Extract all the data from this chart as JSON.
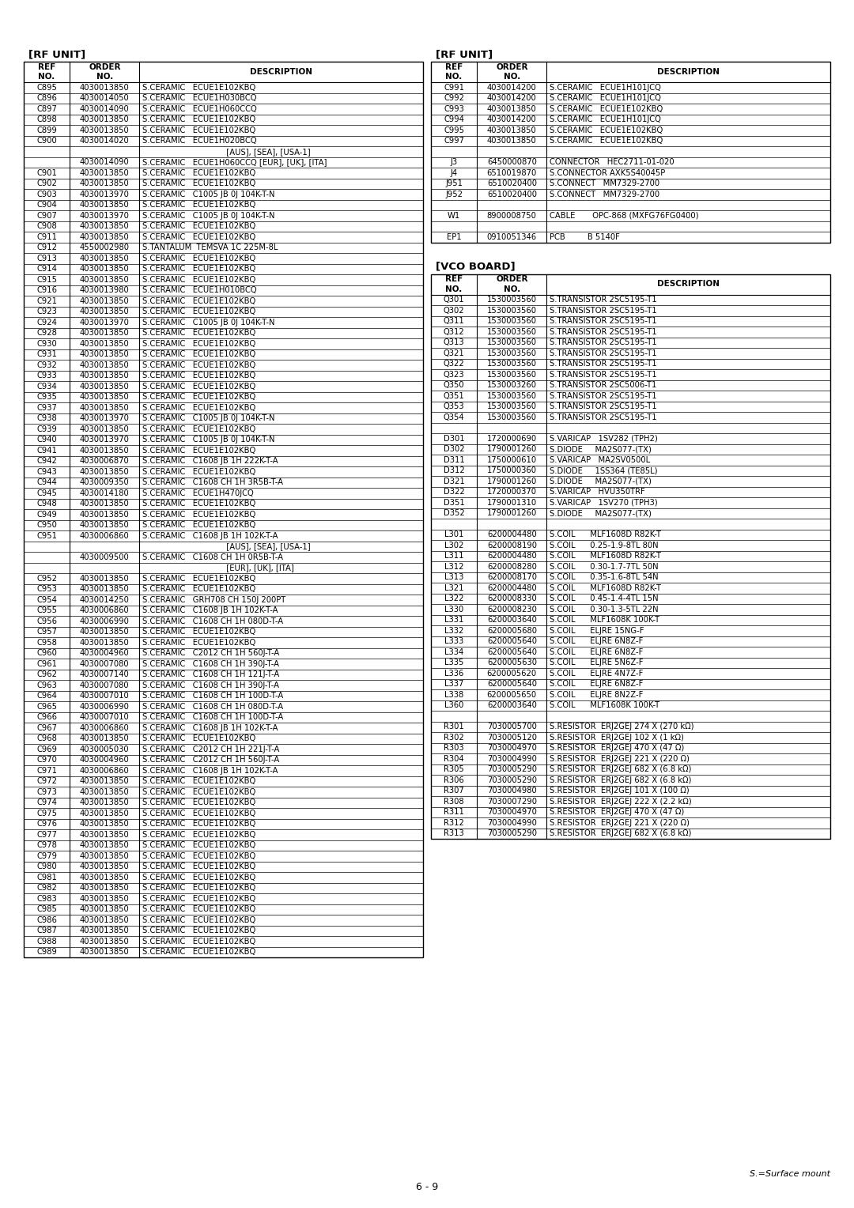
{
  "page_label": "6 - 9",
  "surface_mount_note": "S.=Surface mount",
  "left_table_title": "[RF UNIT]",
  "left_table_headers": [
    "REF\nNO.",
    "ORDER\nNO.",
    "DESCRIPTION"
  ],
  "left_rows": [
    [
      "C895",
      "4030013850",
      "S.CERAMIC   ECUE1E102KBQ"
    ],
    [
      "C896",
      "4030014050",
      "S.CERAMIC   ECUE1H030BCQ"
    ],
    [
      "C897",
      "4030014090",
      "S.CERAMIC   ECUE1H060CCQ"
    ],
    [
      "C898",
      "4030013850",
      "S.CERAMIC   ECUE1E102KBQ"
    ],
    [
      "C899",
      "4030013850",
      "S.CERAMIC   ECUE1E102KBQ"
    ],
    [
      "C900",
      "4030014020",
      "S.CERAMIC   ECUE1H020BCQ"
    ],
    [
      "",
      "",
      "                                  [AUS], [SEA], [USA-1]"
    ],
    [
      "",
      "4030014090",
      "S.CERAMIC   ECUE1H060CCQ [EUR], [UK], [ITA]"
    ],
    [
      "C901",
      "4030013850",
      "S.CERAMIC   ECUE1E102KBQ"
    ],
    [
      "C902",
      "4030013850",
      "S.CERAMIC   ECUE1E102KBQ"
    ],
    [
      "C903",
      "4030013970",
      "S.CERAMIC   C1005 JB 0J 104K-T-N"
    ],
    [
      "C904",
      "4030013850",
      "S.CERAMIC   ECUE1E102KBQ"
    ],
    [
      "C907",
      "4030013970",
      "S.CERAMIC   C1005 JB 0J 104K-T-N"
    ],
    [
      "C908",
      "4030013850",
      "S.CERAMIC   ECUE1E102KBQ"
    ],
    [
      "C911",
      "4030013850",
      "S.CERAMIC   ECUE1E102KBQ"
    ],
    [
      "C912",
      "4550002980",
      "S.TANTALUM  TEMSVA 1C 225M-8L"
    ],
    [
      "C913",
      "4030013850",
      "S.CERAMIC   ECUE1E102KBQ"
    ],
    [
      "C914",
      "4030013850",
      "S.CERAMIC   ECUE1E102KBQ"
    ],
    [
      "C915",
      "4030013850",
      "S.CERAMIC   ECUE1E102KBQ"
    ],
    [
      "C916",
      "4030013980",
      "S.CERAMIC   ECUE1H010BCQ"
    ],
    [
      "C921",
      "4030013850",
      "S.CERAMIC   ECUE1E102KBQ"
    ],
    [
      "C923",
      "4030013850",
      "S.CERAMIC   ECUE1E102KBQ"
    ],
    [
      "C924",
      "4030013970",
      "S.CERAMIC   C1005 JB 0J 104K-T-N"
    ],
    [
      "C928",
      "4030013850",
      "S.CERAMIC   ECUE1E102KBQ"
    ],
    [
      "C930",
      "4030013850",
      "S.CERAMIC   ECUE1E102KBQ"
    ],
    [
      "C931",
      "4030013850",
      "S.CERAMIC   ECUE1E102KBQ"
    ],
    [
      "C932",
      "4030013850",
      "S.CERAMIC   ECUE1E102KBQ"
    ],
    [
      "C933",
      "4030013850",
      "S.CERAMIC   ECUE1E102KBQ"
    ],
    [
      "C934",
      "4030013850",
      "S.CERAMIC   ECUE1E102KBQ"
    ],
    [
      "C935",
      "4030013850",
      "S.CERAMIC   ECUE1E102KBQ"
    ],
    [
      "C937",
      "4030013850",
      "S.CERAMIC   ECUE1E102KBQ"
    ],
    [
      "C938",
      "4030013970",
      "S.CERAMIC   C1005 JB 0J 104K-T-N"
    ],
    [
      "C939",
      "4030013850",
      "S.CERAMIC   ECUE1E102KBQ"
    ],
    [
      "C940",
      "4030013970",
      "S.CERAMIC   C1005 JB 0J 104K-T-N"
    ],
    [
      "C941",
      "4030013850",
      "S.CERAMIC   ECUE1E102KBQ"
    ],
    [
      "C942",
      "4030006870",
      "S.CERAMIC   C1608 JB 1H 222K-T-A"
    ],
    [
      "C943",
      "4030013850",
      "S.CERAMIC   ECUE1E102KBQ"
    ],
    [
      "C944",
      "4030009350",
      "S.CERAMIC   C1608 CH 1H 3R5B-T-A"
    ],
    [
      "C945",
      "4030014180",
      "S.CERAMIC   ECUE1H470JCQ"
    ],
    [
      "C948",
      "4030013850",
      "S.CERAMIC   ECUE1E102KBQ"
    ],
    [
      "C949",
      "4030013850",
      "S.CERAMIC   ECUE1E102KBQ"
    ],
    [
      "C950",
      "4030013850",
      "S.CERAMIC   ECUE1E102KBQ"
    ],
    [
      "C951",
      "4030006860",
      "S.CERAMIC   C1608 JB 1H 102K-T-A"
    ],
    [
      "",
      "",
      "                                  [AUS], [SEA], [USA-1]"
    ],
    [
      "",
      "4030009500",
      "S.CERAMIC   C1608 CH 1H 0R5B-T-A"
    ],
    [
      "",
      "",
      "                                  [EUR], [UK], [ITA]"
    ],
    [
      "C952",
      "4030013850",
      "S.CERAMIC   ECUE1E102KBQ"
    ],
    [
      "C953",
      "4030013850",
      "S.CERAMIC   ECUE1E102KBQ"
    ],
    [
      "C954",
      "4030014250",
      "S.CERAMIC   GRH708 CH 150J 200PT"
    ],
    [
      "C955",
      "4030006860",
      "S.CERAMIC   C1608 JB 1H 102K-T-A"
    ],
    [
      "C956",
      "4030006990",
      "S.CERAMIC   C1608 CH 1H 080D-T-A"
    ],
    [
      "C957",
      "4030013850",
      "S.CERAMIC   ECUE1E102KBQ"
    ],
    [
      "C958",
      "4030013850",
      "S.CERAMIC   ECUE1E102KBQ"
    ],
    [
      "C960",
      "4030004960",
      "S.CERAMIC   C2012 CH 1H 560J-T-A"
    ],
    [
      "C961",
      "4030007080",
      "S.CERAMIC   C1608 CH 1H 390J-T-A"
    ],
    [
      "C962",
      "4030007140",
      "S.CERAMIC   C1608 CH 1H 121J-T-A"
    ],
    [
      "C963",
      "4030007080",
      "S.CERAMIC   C1608 CH 1H 390J-T-A"
    ],
    [
      "C964",
      "4030007010",
      "S.CERAMIC   C1608 CH 1H 100D-T-A"
    ],
    [
      "C965",
      "4030006990",
      "S.CERAMIC   C1608 CH 1H 080D-T-A"
    ],
    [
      "C966",
      "4030007010",
      "S.CERAMIC   C1608 CH 1H 100D-T-A"
    ],
    [
      "C967",
      "4030006860",
      "S.CERAMIC   C1608 JB 1H 102K-T-A"
    ],
    [
      "C968",
      "4030013850",
      "S.CERAMIC   ECUE1E102KBQ"
    ],
    [
      "C969",
      "4030005030",
      "S.CERAMIC   C2012 CH 1H 221J-T-A"
    ],
    [
      "C970",
      "4030004960",
      "S.CERAMIC   C2012 CH 1H 560J-T-A"
    ],
    [
      "C971",
      "4030006860",
      "S.CERAMIC   C1608 JB 1H 102K-T-A"
    ],
    [
      "C972",
      "4030013850",
      "S.CERAMIC   ECUE1E102KBQ"
    ],
    [
      "C973",
      "4030013850",
      "S.CERAMIC   ECUE1E102KBQ"
    ],
    [
      "C974",
      "4030013850",
      "S.CERAMIC   ECUE1E102KBQ"
    ],
    [
      "C975",
      "4030013850",
      "S.CERAMIC   ECUE1E102KBQ"
    ],
    [
      "C976",
      "4030013850",
      "S.CERAMIC   ECUE1E102KBQ"
    ],
    [
      "C977",
      "4030013850",
      "S.CERAMIC   ECUE1E102KBQ"
    ],
    [
      "C978",
      "4030013850",
      "S.CERAMIC   ECUE1E102KBQ"
    ],
    [
      "C979",
      "4030013850",
      "S.CERAMIC   ECUE1E102KBQ"
    ],
    [
      "C980",
      "4030013850",
      "S.CERAMIC   ECUE1E102KBQ"
    ],
    [
      "C981",
      "4030013850",
      "S.CERAMIC   ECUE1E102KBQ"
    ],
    [
      "C982",
      "4030013850",
      "S.CERAMIC   ECUE1E102KBQ"
    ],
    [
      "C983",
      "4030013850",
      "S.CERAMIC   ECUE1E102KBQ"
    ],
    [
      "C985",
      "4030013850",
      "S.CERAMIC   ECUE1E102KBQ"
    ],
    [
      "C986",
      "4030013850",
      "S.CERAMIC   ECUE1E102KBQ"
    ],
    [
      "C987",
      "4030013850",
      "S.CERAMIC   ECUE1E102KBQ"
    ],
    [
      "C988",
      "4030013850",
      "S.CERAMIC   ECUE1E102KBQ"
    ],
    [
      "C989",
      "4030013850",
      "S.CERAMIC   ECUE1E102KBQ"
    ]
  ],
  "right_top_title": "[RF UNIT]",
  "right_top_headers": [
    "REF\nNO.",
    "ORDER\nNO.",
    "DESCRIPTION"
  ],
  "right_top_rows": [
    [
      "C991",
      "4030014200",
      "S.CERAMIC   ECUE1H101JCQ"
    ],
    [
      "C992",
      "4030014200",
      "S.CERAMIC   ECUE1H101JCQ"
    ],
    [
      "C993",
      "4030013850",
      "S.CERAMIC   ECUE1E102KBQ"
    ],
    [
      "C994",
      "4030014200",
      "S.CERAMIC   ECUE1H101JCQ"
    ],
    [
      "C995",
      "4030013850",
      "S.CERAMIC   ECUE1E102KBQ"
    ],
    [
      "C997",
      "4030013850",
      "S.CERAMIC   ECUE1E102KBQ"
    ],
    [
      "",
      "",
      ""
    ],
    [
      "J3",
      "6450000870",
      "CONNECTOR   HEC2711-01-020"
    ],
    [
      "J4",
      "6510019870",
      "S.CONNECTOR AXK5S40045P"
    ],
    [
      "J951",
      "6510020400",
      "S.CONNECT   MM7329-2700"
    ],
    [
      "J952",
      "6510020400",
      "S.CONNECT   MM7329-2700"
    ],
    [
      "",
      "",
      ""
    ],
    [
      "W1",
      "8900008750",
      "CABLE       OPC-868 (MXFG76FG0400)"
    ],
    [
      "",
      "",
      ""
    ],
    [
      "EP1",
      "0910051346",
      "PCB         B 5140F"
    ]
  ],
  "right_bottom_title": "[VCO BOARD]",
  "right_bottom_headers": [
    "REF\nNO.",
    "ORDER\nNO.",
    "DESCRIPTION"
  ],
  "right_bottom_rows": [
    [
      "Q301",
      "1530003560",
      "S.TRANSISTOR 2SC5195-T1"
    ],
    [
      "Q302",
      "1530003560",
      "S.TRANSISTOR 2SC5195-T1"
    ],
    [
      "Q311",
      "1530003560",
      "S.TRANSISTOR 2SC5195-T1"
    ],
    [
      "Q312",
      "1530003560",
      "S.TRANSISTOR 2SC5195-T1"
    ],
    [
      "Q313",
      "1530003560",
      "S.TRANSISTOR 2SC5195-T1"
    ],
    [
      "Q321",
      "1530003560",
      "S.TRANSISTOR 2SC5195-T1"
    ],
    [
      "Q322",
      "1530003560",
      "S.TRANSISTOR 2SC5195-T1"
    ],
    [
      "Q323",
      "1530003560",
      "S.TRANSISTOR 2SC5195-T1"
    ],
    [
      "Q350",
      "1530003260",
      "S.TRANSISTOR 2SC5006-T1"
    ],
    [
      "Q351",
      "1530003560",
      "S.TRANSISTOR 2SC5195-T1"
    ],
    [
      "Q353",
      "1530003560",
      "S.TRANSISTOR 2SC5195-T1"
    ],
    [
      "Q354",
      "1530003560",
      "S.TRANSISTOR 2SC5195-T1"
    ],
    [
      "",
      "",
      ""
    ],
    [
      "D301",
      "1720000690",
      "S.VARICAP   1SV282 (TPH2)"
    ],
    [
      "D302",
      "1790001260",
      "S.DIODE     MA2S077-(TX)"
    ],
    [
      "D311",
      "1750000610",
      "S.VARICAP   MA2SV0500L"
    ],
    [
      "D312",
      "1750000360",
      "S.DIODE     1SS364 (TE85L)"
    ],
    [
      "D321",
      "1790001260",
      "S.DIODE     MA2S077-(TX)"
    ],
    [
      "D322",
      "1720000370",
      "S.VARICAP   HVU350TRF"
    ],
    [
      "D351",
      "1790001310",
      "S.VARICAP   1SV270 (TPH3)"
    ],
    [
      "D352",
      "1790001260",
      "S.DIODE     MA2S077-(TX)"
    ],
    [
      "",
      "",
      ""
    ],
    [
      "L301",
      "6200004480",
      "S.COIL      MLF1608D R82K-T"
    ],
    [
      "L302",
      "6200008190",
      "S.COIL      0.25-1.9-8TL 80N"
    ],
    [
      "L311",
      "6200004480",
      "S.COIL      MLF1608D R82K-T"
    ],
    [
      "L312",
      "6200008280",
      "S.COIL      0.30-1.7-7TL 50N"
    ],
    [
      "L313",
      "6200008170",
      "S.COIL      0.35-1.6-8TL 54N"
    ],
    [
      "L321",
      "6200004480",
      "S.COIL      MLF1608D R82K-T"
    ],
    [
      "L322",
      "6200008330",
      "S.COIL      0.45-1.4-4TL 15N"
    ],
    [
      "L330",
      "6200008230",
      "S.COIL      0.30-1.3-5TL 22N"
    ],
    [
      "L331",
      "6200003640",
      "S.COIL      MLF1608K 100K-T"
    ],
    [
      "L332",
      "6200005680",
      "S.COIL      ELJRE 15NG-F"
    ],
    [
      "L333",
      "6200005640",
      "S.COIL      ELJRE 6N8Z-F"
    ],
    [
      "L334",
      "6200005640",
      "S.COIL      ELJRE 6N8Z-F"
    ],
    [
      "L335",
      "6200005630",
      "S.COIL      ELJRE 5N6Z-F"
    ],
    [
      "L336",
      "6200005620",
      "S.COIL      ELJRE 4N7Z-F"
    ],
    [
      "L337",
      "6200005640",
      "S.COIL      ELJRE 6N8Z-F"
    ],
    [
      "L338",
      "6200005650",
      "S.COIL      ELJRE 8N2Z-F"
    ],
    [
      "L360",
      "6200003640",
      "S.COIL      MLF1608K 100K-T"
    ],
    [
      "",
      "",
      ""
    ],
    [
      "R301",
      "7030005700",
      "S.RESISTOR  ERJ2GEJ 274 X (270 kΩ)"
    ],
    [
      "R302",
      "7030005120",
      "S.RESISTOR  ERJ2GEJ 102 X (1 kΩ)"
    ],
    [
      "R303",
      "7030004970",
      "S.RESISTOR  ERJ2GEJ 470 X (47 Ω)"
    ],
    [
      "R304",
      "7030004990",
      "S.RESISTOR  ERJ2GEJ 221 X (220 Ω)"
    ],
    [
      "R305",
      "7030005290",
      "S.RESISTOR  ERJ2GEJ 682 X (6.8 kΩ)"
    ],
    [
      "R306",
      "7030005290",
      "S.RESISTOR  ERJ2GEJ 682 X (6.8 kΩ)"
    ],
    [
      "R307",
      "7030004980",
      "S.RESISTOR  ERJ2GEJ 101 X (100 Ω)"
    ],
    [
      "R308",
      "7030007290",
      "S.RESISTOR  ERJ2GEJ 222 X (2.2 kΩ)"
    ],
    [
      "R311",
      "7030004970",
      "S.RESISTOR  ERJ2GEJ 470 X (47 Ω)"
    ],
    [
      "R312",
      "7030004990",
      "S.RESISTOR  ERJ2GEJ 221 X (220 Ω)"
    ],
    [
      "R313",
      "7030005290",
      "S.RESISTOR  ERJ2GEJ 682 X (6.8 kΩ)"
    ]
  ]
}
